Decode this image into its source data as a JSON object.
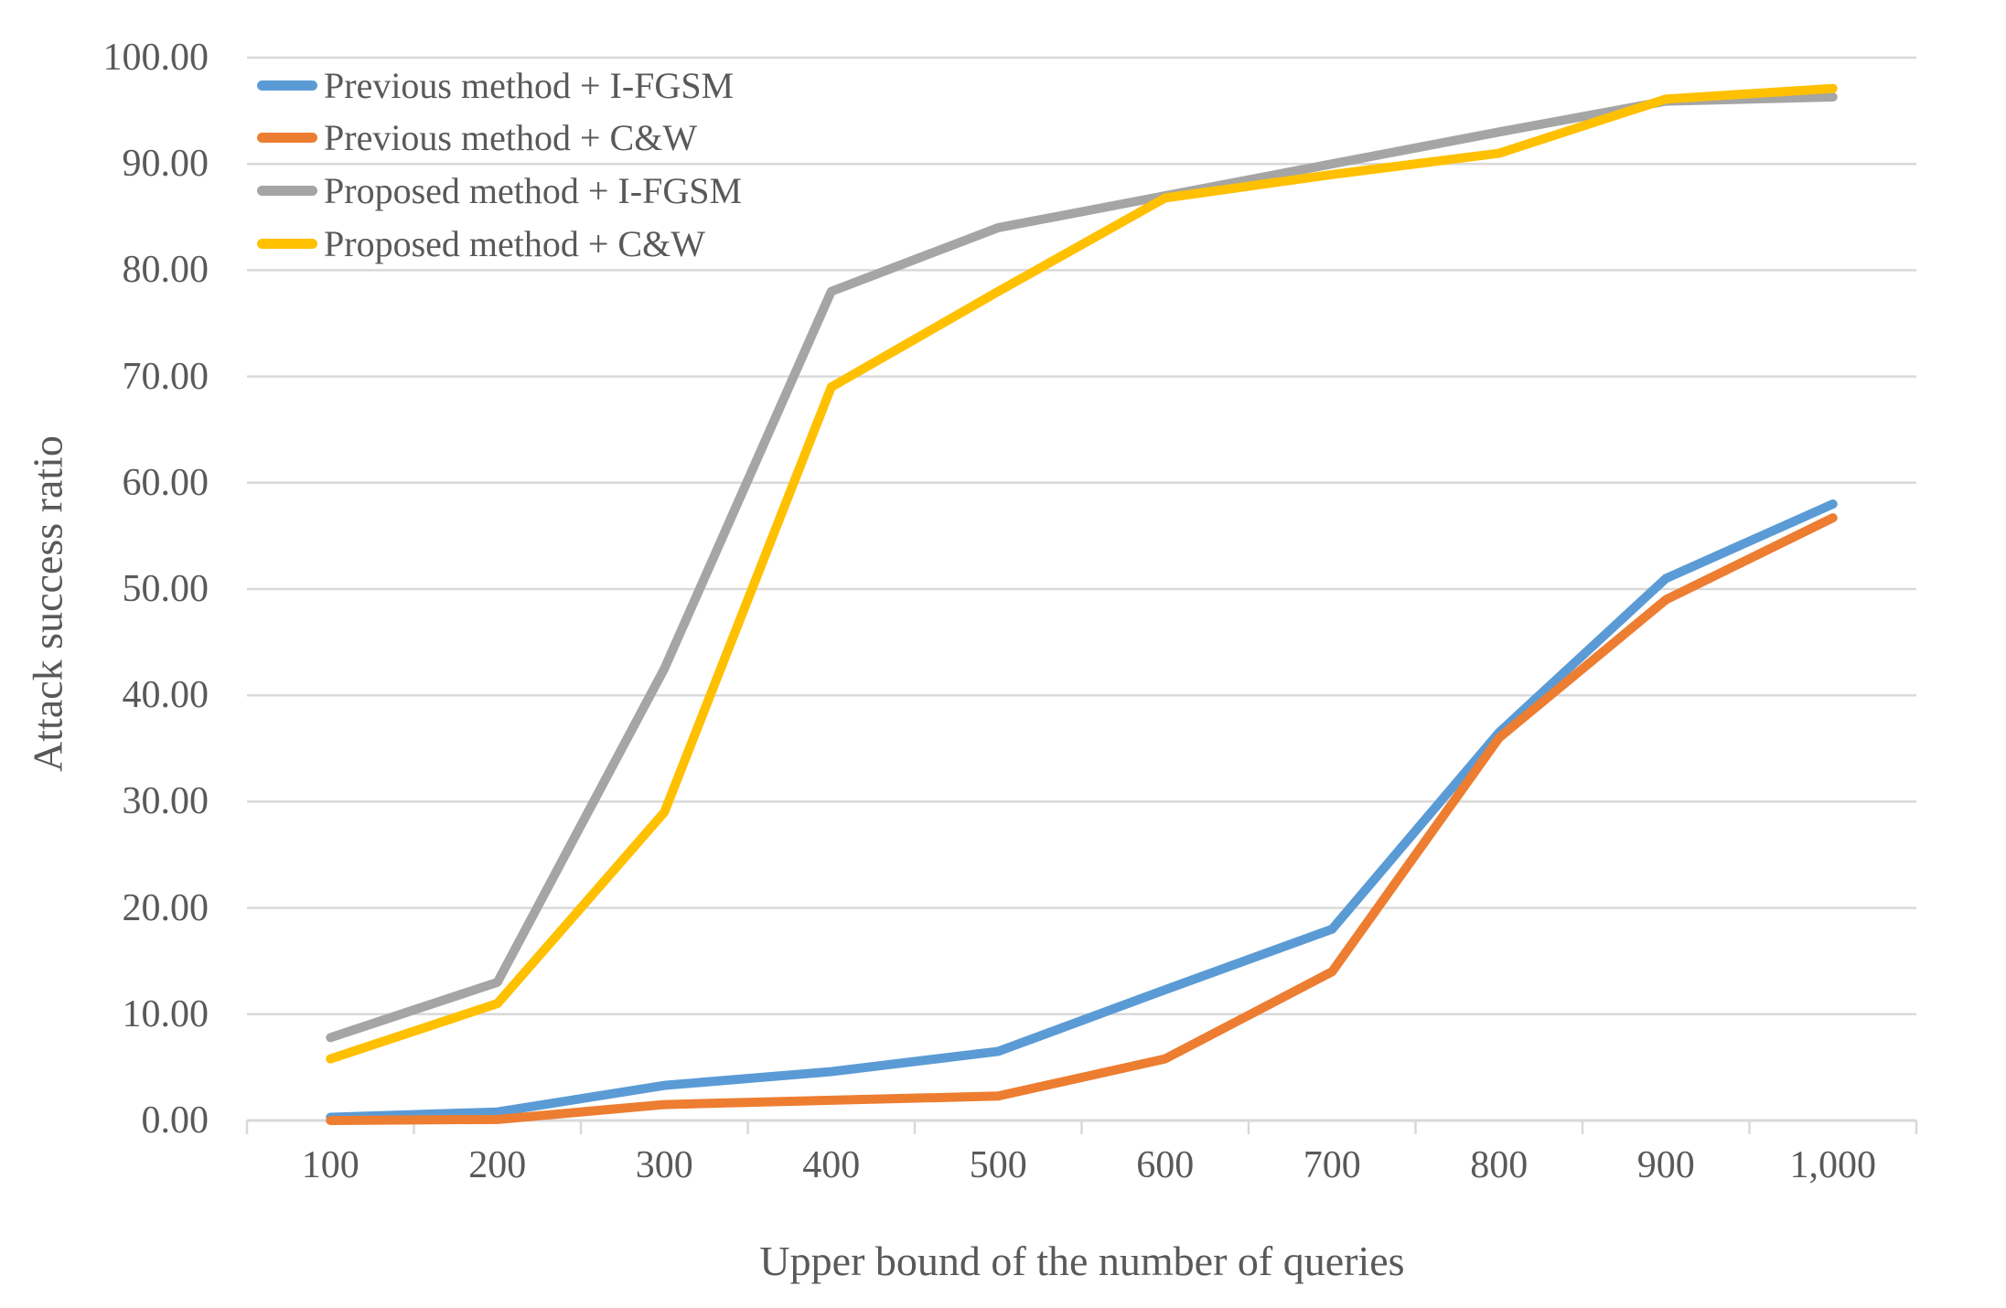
{
  "styles": {
    "background": "#FFFFFF",
    "text_color": "#595959",
    "grid_color": "#D9D9D9",
    "axis_color": "#D9D9D9"
  },
  "chart_data": {
    "type": "line",
    "title": "",
    "xlabel": "Upper bound of the number of queries",
    "ylabel": "Attack success ratio",
    "categories": [
      100,
      200,
      300,
      400,
      500,
      600,
      700,
      800,
      900,
      1000
    ],
    "x_tick_labels": [
      "100",
      "200",
      "300",
      "400",
      "500",
      "600",
      "700",
      "800",
      "900",
      "1,000"
    ],
    "y_tick_labels": [
      "0.00",
      "10.00",
      "20.00",
      "30.00",
      "40.00",
      "50.00",
      "60.00",
      "70.00",
      "80.00",
      "90.00",
      "100.00"
    ],
    "ylim": [
      0,
      100
    ],
    "grid": true,
    "legend_position": "top-left-inside",
    "series": [
      {
        "name": "Previous method + I-FGSM",
        "color": "#5B9BD5",
        "values": [
          0.3,
          0.8,
          3.3,
          4.6,
          6.5,
          12.3,
          18,
          36.5,
          51,
          58
        ]
      },
      {
        "name": "Previous method + C&W",
        "color": "#ED7D31",
        "values": [
          0,
          0.1,
          1.5,
          1.9,
          2.3,
          5.8,
          14,
          36,
          49,
          56.7
        ]
      },
      {
        "name": "Proposed method + I-FGSM",
        "color": "#A5A5A5",
        "values": [
          7.8,
          13,
          42.5,
          78,
          84,
          87,
          90,
          93,
          95.9,
          96.3
        ]
      },
      {
        "name": "Proposed method + C&W",
        "color": "#FFC000",
        "values": [
          5.8,
          11,
          29,
          69,
          78,
          86.8,
          89,
          91,
          96.1,
          97.1
        ]
      }
    ]
  }
}
